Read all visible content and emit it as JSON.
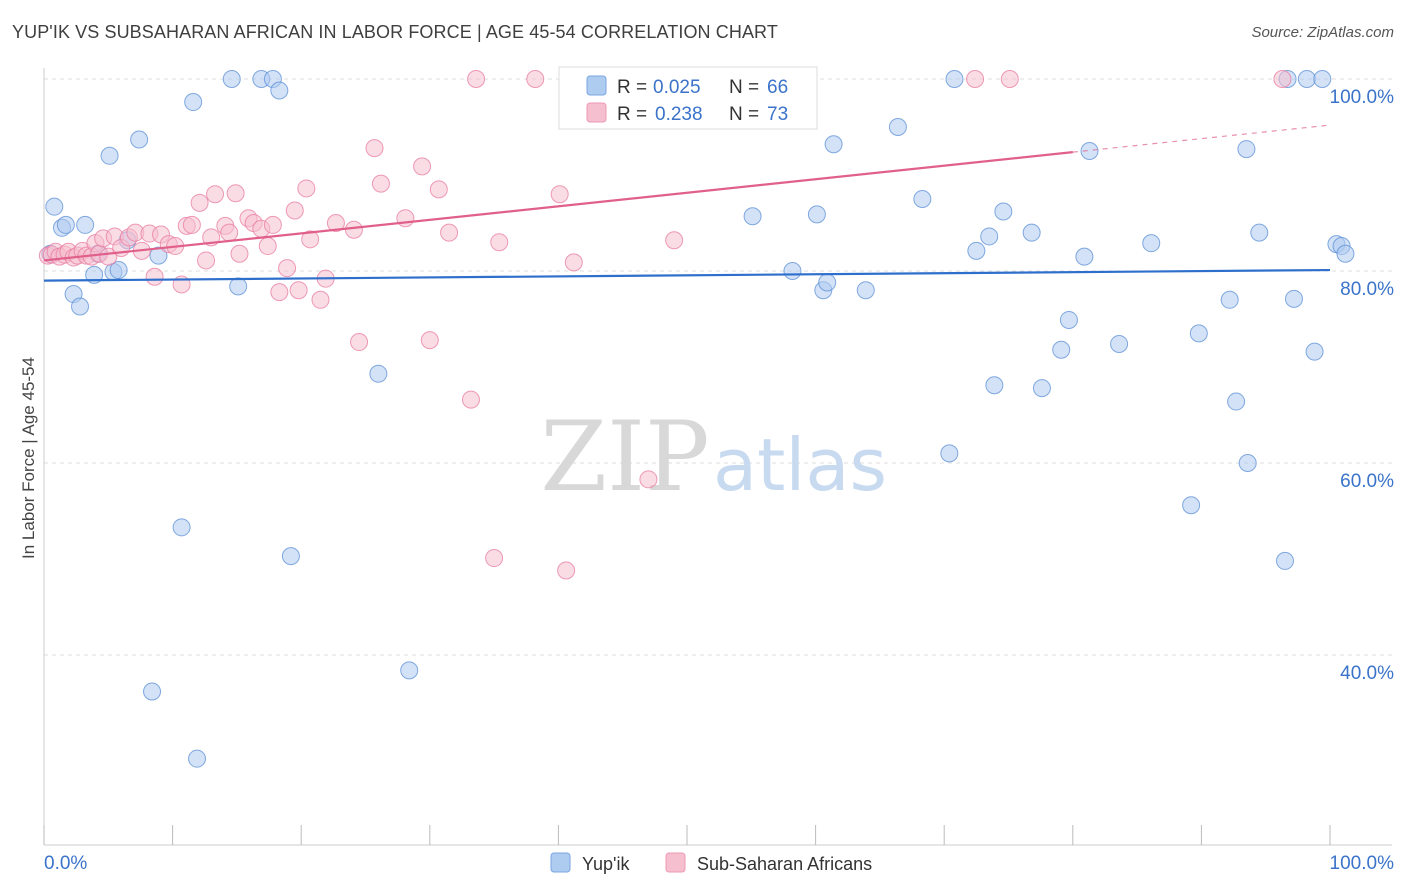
{
  "header": {
    "title": "YUP'IK VS SUBSAHARAN AFRICAN IN LABOR FORCE | AGE 45-54 CORRELATION CHART",
    "source": "Source: ZipAtlas.com"
  },
  "watermark": {
    "zip": "ZIP",
    "atlas": "atlas"
  },
  "colors": {
    "blue": "#5b8fd6",
    "blue_fill": "#aecbf0",
    "blue_line": "#2f6fcc",
    "pink": "#e87ba0",
    "pink_fill": "#f6bfd0",
    "pink_line": "#e0608b",
    "tick_label": "#3a73c9",
    "grid": "#dddddd"
  },
  "legend_top": [
    {
      "r_label": "R = ",
      "r_value": "0.025",
      "n_label": "N = ",
      "n_value": "66",
      "color": "blue"
    },
    {
      "r_label": "R = ",
      "r_value": "0.238",
      "n_label": "N = ",
      "n_value": "73",
      "color": "pink"
    }
  ],
  "legend_bottom": [
    {
      "label": "Yup'ik",
      "color": "blue"
    },
    {
      "label": "Sub-Saharan Africans",
      "color": "pink"
    }
  ],
  "chart_data": {
    "type": "scatter",
    "title": "YUP'IK VS SUBSAHARAN AFRICAN IN LABOR FORCE | AGE 45-54 CORRELATION CHART",
    "xlabel": "",
    "ylabel": "In Labor Force | Age 45-54",
    "xlim": [
      0,
      100
    ],
    "ylim": [
      20,
      103
    ],
    "x_tick_labels": [
      {
        "value": 0,
        "label": "0.0%"
      },
      {
        "value": 100,
        "label": "100.0%"
      }
    ],
    "y_tick_labels": [
      {
        "value": 40,
        "label": "40.0%"
      },
      {
        "value": 60,
        "label": "60.0%"
      },
      {
        "value": 80,
        "label": "80.0%"
      },
      {
        "value": 100,
        "label": "100.0%"
      }
    ],
    "grid": true,
    "legend_position": "top-center",
    "series": [
      {
        "name": "Yup'ik",
        "color": "blue",
        "trend": {
          "x0": 0,
          "y0": 79.0,
          "x1": 100,
          "y1": 80.1
        },
        "points": [
          [
            0.5,
            81.8
          ],
          [
            0.8,
            86.7
          ],
          [
            1.4,
            84.5
          ],
          [
            1.7,
            84.8
          ],
          [
            2.3,
            77.6
          ],
          [
            2.8,
            76.3
          ],
          [
            3.2,
            84.8
          ],
          [
            3.9,
            79.6
          ],
          [
            4.2,
            81.8
          ],
          [
            5.1,
            92.0
          ],
          [
            5.4,
            79.9
          ],
          [
            5.8,
            80.1
          ],
          [
            6.5,
            83.2
          ],
          [
            7.4,
            93.7
          ],
          [
            8.4,
            36.2
          ],
          [
            8.9,
            81.6
          ],
          [
            10.7,
            53.3
          ],
          [
            11.6,
            97.6
          ],
          [
            11.9,
            29.2
          ],
          [
            14.6,
            100.0
          ],
          [
            15.1,
            78.4
          ],
          [
            16.9,
            100.0
          ],
          [
            17.8,
            100.0
          ],
          [
            18.3,
            98.8
          ],
          [
            19.2,
            50.3
          ],
          [
            26.0,
            69.3
          ],
          [
            28.4,
            38.4
          ],
          [
            55.1,
            85.7
          ],
          [
            58.2,
            80.0
          ],
          [
            60.1,
            85.9
          ],
          [
            60.6,
            78.0
          ],
          [
            60.9,
            78.8
          ],
          [
            61.4,
            93.2
          ],
          [
            63.9,
            78.0
          ],
          [
            66.4,
            95.0
          ],
          [
            68.3,
            87.5
          ],
          [
            70.4,
            61.0
          ],
          [
            70.8,
            100.0
          ],
          [
            72.5,
            82.1
          ],
          [
            73.5,
            83.6
          ],
          [
            73.9,
            68.1
          ],
          [
            74.6,
            86.2
          ],
          [
            76.8,
            84.0
          ],
          [
            77.6,
            67.8
          ],
          [
            79.1,
            71.8
          ],
          [
            79.7,
            74.9
          ],
          [
            80.9,
            81.5
          ],
          [
            81.3,
            92.5
          ],
          [
            83.6,
            72.4
          ],
          [
            86.1,
            82.9
          ],
          [
            89.2,
            55.6
          ],
          [
            89.8,
            73.5
          ],
          [
            92.2,
            77.0
          ],
          [
            92.7,
            66.4
          ],
          [
            93.5,
            92.7
          ],
          [
            93.6,
            60.0
          ],
          [
            94.5,
            84.0
          ],
          [
            96.5,
            49.8
          ],
          [
            96.7,
            100.0
          ],
          [
            97.2,
            77.1
          ],
          [
            98.2,
            100.0
          ],
          [
            98.8,
            71.6
          ],
          [
            99.4,
            100.0
          ],
          [
            100.5,
            82.8
          ],
          [
            100.9,
            82.6
          ],
          [
            101.2,
            81.8
          ]
        ]
      },
      {
        "name": "Sub-Saharan Africans",
        "color": "pink",
        "trend": {
          "x0": 0,
          "y0": 81.1,
          "x1": 100,
          "y1": 95.2,
          "solid_until": 80.0
        },
        "points": [
          [
            0.3,
            81.6
          ],
          [
            0.6,
            81.7
          ],
          [
            0.9,
            82.0
          ],
          [
            1.2,
            81.5
          ],
          [
            1.6,
            81.7
          ],
          [
            1.9,
            82.0
          ],
          [
            2.3,
            81.4
          ],
          [
            2.6,
            81.6
          ],
          [
            3.0,
            82.1
          ],
          [
            3.3,
            81.6
          ],
          [
            3.7,
            81.5
          ],
          [
            4.0,
            82.9
          ],
          [
            4.3,
            81.8
          ],
          [
            4.6,
            83.4
          ],
          [
            5.0,
            81.5
          ],
          [
            5.5,
            83.6
          ],
          [
            6.0,
            82.4
          ],
          [
            6.6,
            83.5
          ],
          [
            7.1,
            84.0
          ],
          [
            7.6,
            82.1
          ],
          [
            8.2,
            83.9
          ],
          [
            8.6,
            79.4
          ],
          [
            9.1,
            83.8
          ],
          [
            9.7,
            82.8
          ],
          [
            10.2,
            82.6
          ],
          [
            10.7,
            78.6
          ],
          [
            11.1,
            84.7
          ],
          [
            11.5,
            84.8
          ],
          [
            12.1,
            87.1
          ],
          [
            12.6,
            81.1
          ],
          [
            13.0,
            83.5
          ],
          [
            13.3,
            88.0
          ],
          [
            14.1,
            84.7
          ],
          [
            14.4,
            84.0
          ],
          [
            14.9,
            88.1
          ],
          [
            15.2,
            81.8
          ],
          [
            15.9,
            85.5
          ],
          [
            16.3,
            85.0
          ],
          [
            16.9,
            84.4
          ],
          [
            17.4,
            82.6
          ],
          [
            17.8,
            84.8
          ],
          [
            18.3,
            77.8
          ],
          [
            18.9,
            80.3
          ],
          [
            19.5,
            86.3
          ],
          [
            19.8,
            78.0
          ],
          [
            20.4,
            88.6
          ],
          [
            20.7,
            83.3
          ],
          [
            21.5,
            77.0
          ],
          [
            21.9,
            79.2
          ],
          [
            22.7,
            85.0
          ],
          [
            24.1,
            84.3
          ],
          [
            24.5,
            72.6
          ],
          [
            25.7,
            92.8
          ],
          [
            26.2,
            89.1
          ],
          [
            28.1,
            85.5
          ],
          [
            29.4,
            90.9
          ],
          [
            30.0,
            72.8
          ],
          [
            30.7,
            88.5
          ],
          [
            31.5,
            84.0
          ],
          [
            33.2,
            66.6
          ],
          [
            33.6,
            100.0
          ],
          [
            35.0,
            50.1
          ],
          [
            35.4,
            83.0
          ],
          [
            38.2,
            100.0
          ],
          [
            40.1,
            88.0
          ],
          [
            40.6,
            48.8
          ],
          [
            41.2,
            80.9
          ],
          [
            47.0,
            58.3
          ],
          [
            49.0,
            83.2
          ],
          [
            56.0,
            100.0
          ],
          [
            72.4,
            100.0
          ],
          [
            75.1,
            100.0
          ],
          [
            96.3,
            100.0
          ]
        ]
      }
    ]
  }
}
